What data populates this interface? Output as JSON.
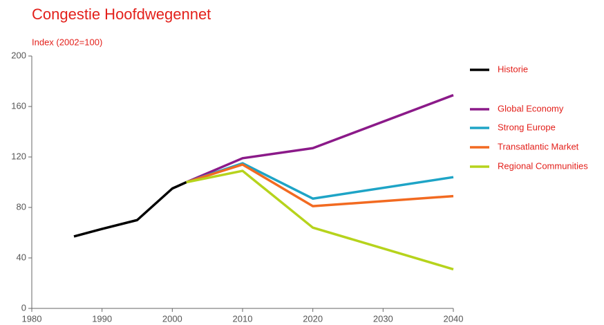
{
  "chart_data": {
    "type": "line",
    "title": "Congestie Hoofdwegennet",
    "y_label": "Index (2002=100)",
    "x": [
      1986,
      1990,
      1995,
      2000,
      2002,
      2010,
      2020,
      2040
    ],
    "series": [
      {
        "name": "Historie",
        "color": "#000000",
        "values": [
          57,
          63,
          70,
          95,
          100,
          null,
          null,
          null
        ]
      },
      {
        "name": "Global Economy",
        "color": "#8b1a89",
        "values": [
          null,
          null,
          null,
          null,
          100,
          119,
          127,
          169
        ]
      },
      {
        "name": "Strong Europe",
        "color": "#1ea4c6",
        "values": [
          null,
          null,
          null,
          null,
          100,
          115,
          87,
          104
        ]
      },
      {
        "name": "Transatlantic Market",
        "color": "#f26a21",
        "values": [
          null,
          null,
          null,
          null,
          100,
          114,
          81,
          89
        ]
      },
      {
        "name": "Regional Communities",
        "color": "#b6d31c",
        "values": [
          null,
          null,
          null,
          null,
          100,
          109,
          64,
          31
        ]
      }
    ],
    "xlim": [
      1980,
      2040
    ],
    "xticks": [
      1980,
      1990,
      2000,
      2010,
      2020,
      2030,
      2040
    ],
    "ylim": [
      0,
      200
    ],
    "yticks": [
      0,
      40,
      80,
      120,
      160,
      200
    ],
    "legend": "right"
  }
}
